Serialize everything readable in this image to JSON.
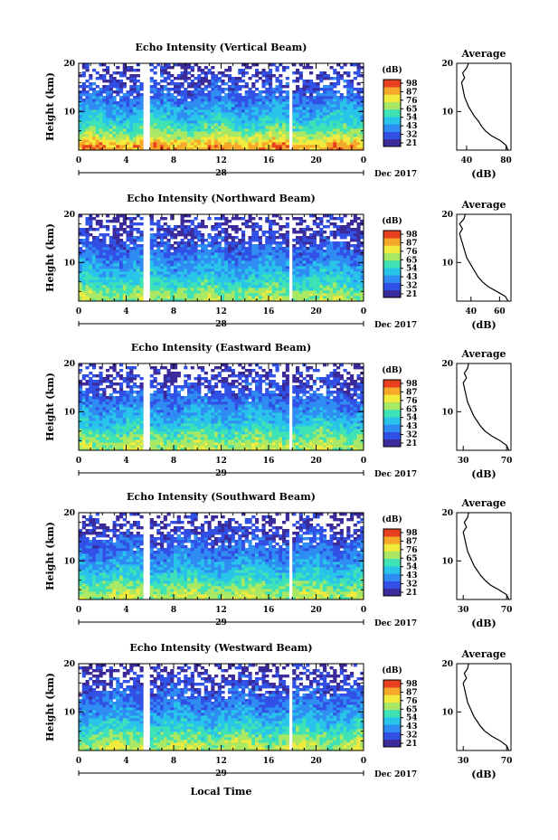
{
  "figure": {
    "xlabel": "Local Time",
    "month_label": "Dec 2017",
    "cbar_unit": "(dB)",
    "cbar_ticks": [
      "98",
      "87",
      "76",
      "65",
      "54",
      "43",
      "32",
      "21"
    ],
    "x_ticks": [
      "0",
      "4",
      "8",
      "12",
      "16",
      "20",
      "0"
    ],
    "y_ticks": [
      "20",
      "10"
    ],
    "avg_title": "Average",
    "avg_xlabel": "(dB)"
  },
  "colors": {
    "colormap": [
      "#3a2a9a",
      "#3050e6",
      "#2f8cf3",
      "#28c4ea",
      "#3ee2b4",
      "#a8e864",
      "#f2ea3c",
      "#f5a82a",
      "#e8401e"
    ]
  },
  "chart_data": [
    {
      "type": "heatmap",
      "title": "Echo Intensity (Vertical Beam)",
      "ylabel": "Height (km)",
      "xlabel": "",
      "date_label": "28",
      "xlim": [
        0,
        24
      ],
      "ylim": [
        2,
        20
      ],
      "zlim": [
        21,
        98
      ],
      "data_gaps_hours": [
        [
          5.5,
          6.0
        ],
        [
          17.6,
          18.1
        ]
      ],
      "heights_km": [
        3,
        5,
        7,
        9,
        11,
        13,
        15,
        17,
        19
      ],
      "mean_intensity_db": [
        85,
        68,
        58,
        50,
        44,
        38,
        33,
        30,
        28
      ],
      "average_profile": {
        "x_ticks": [
          "40",
          "80"
        ],
        "xlim": [
          30,
          85
        ],
        "height_km": [
          2,
          3,
          4,
          5,
          6,
          7,
          8,
          9,
          10,
          11,
          12,
          13,
          14,
          15,
          16,
          17,
          18,
          19,
          20
        ],
        "value_db": [
          82,
          80,
          74,
          65,
          59,
          55,
          52,
          48,
          45,
          42,
          40,
          38,
          37,
          36,
          35,
          38,
          36,
          40,
          42
        ]
      }
    },
    {
      "type": "heatmap",
      "title": "Echo Intensity (Northward Beam)",
      "ylabel": "Height (km)",
      "xlabel": "",
      "date_label": "28",
      "xlim": [
        0,
        24
      ],
      "ylim": [
        2,
        20
      ],
      "zlim": [
        21,
        98
      ],
      "data_gaps_hours": [
        [
          5.5,
          6.0
        ],
        [
          17.6,
          18.1
        ]
      ],
      "heights_km": [
        3,
        5,
        7,
        9,
        11,
        13,
        15,
        17,
        19
      ],
      "mean_intensity_db": [
        68,
        60,
        52,
        46,
        41,
        36,
        32,
        29,
        27
      ],
      "average_profile": {
        "x_ticks": [
          "40",
          "60"
        ],
        "xlim": [
          30,
          68
        ],
        "height_km": [
          2,
          3,
          4,
          5,
          6,
          7,
          8,
          9,
          10,
          11,
          12,
          13,
          14,
          15,
          16,
          17,
          18,
          19,
          20
        ],
        "value_db": [
          66,
          64,
          58,
          52,
          48,
          45,
          43,
          41,
          39,
          37,
          36,
          35,
          34,
          33,
          32,
          34,
          32,
          35,
          36
        ]
      }
    },
    {
      "type": "heatmap",
      "title": "Echo Intensity (Eastward Beam)",
      "ylabel": "Height (km)",
      "xlabel": "",
      "date_label": "29",
      "xlim": [
        0,
        24
      ],
      "ylim": [
        2,
        20
      ],
      "zlim": [
        21,
        98
      ],
      "data_gaps_hours": [
        [
          5.5,
          6.0
        ],
        [
          17.6,
          18.1
        ]
      ],
      "heights_km": [
        3,
        5,
        7,
        9,
        11,
        13,
        15,
        17,
        19
      ],
      "mean_intensity_db": [
        70,
        62,
        54,
        47,
        42,
        37,
        33,
        29,
        27
      ],
      "average_profile": {
        "x_ticks": [
          "30",
          "70"
        ],
        "xlim": [
          24,
          74
        ],
        "height_km": [
          2,
          3,
          4,
          5,
          6,
          7,
          8,
          9,
          10,
          11,
          12,
          13,
          14,
          15,
          16,
          17,
          18,
          19,
          20
        ],
        "value_db": [
          72,
          70,
          64,
          56,
          50,
          46,
          43,
          40,
          38,
          36,
          34,
          33,
          32,
          31,
          30,
          33,
          31,
          34,
          35
        ]
      }
    },
    {
      "type": "heatmap",
      "title": "Echo Intensity (Southward Beam)",
      "ylabel": "Height (km)",
      "xlabel": "",
      "date_label": "29",
      "xlim": [
        0,
        24
      ],
      "ylim": [
        2,
        20
      ],
      "zlim": [
        21,
        98
      ],
      "data_gaps_hours": [
        [
          5.5,
          6.0
        ],
        [
          17.6,
          18.1
        ]
      ],
      "heights_km": [
        3,
        5,
        7,
        9,
        11,
        13,
        15,
        17,
        19
      ],
      "mean_intensity_db": [
        70,
        62,
        54,
        47,
        42,
        37,
        33,
        29,
        27
      ],
      "average_profile": {
        "x_ticks": [
          "30",
          "70"
        ],
        "xlim": [
          24,
          74
        ],
        "height_km": [
          2,
          3,
          4,
          5,
          6,
          7,
          8,
          9,
          10,
          11,
          12,
          13,
          14,
          15,
          16,
          17,
          18,
          19,
          20
        ],
        "value_db": [
          72,
          70,
          63,
          55,
          50,
          46,
          43,
          40,
          38,
          36,
          34,
          33,
          32,
          31,
          30,
          33,
          31,
          34,
          35
        ]
      }
    },
    {
      "type": "heatmap",
      "title": "Echo Intensity (Westward Beam)",
      "ylabel": "Height (km)",
      "xlabel": "Local Time",
      "date_label": "29",
      "xlim": [
        0,
        24
      ],
      "ylim": [
        2,
        20
      ],
      "zlim": [
        21,
        98
      ],
      "data_gaps_hours": [
        [
          5.5,
          6.0
        ],
        [
          17.6,
          18.1
        ]
      ],
      "heights_km": [
        3,
        5,
        7,
        9,
        11,
        13,
        15,
        17,
        19
      ],
      "mean_intensity_db": [
        70,
        62,
        54,
        47,
        42,
        37,
        33,
        29,
        27
      ],
      "average_profile": {
        "x_ticks": [
          "30",
          "70"
        ],
        "xlim": [
          24,
          74
        ],
        "height_km": [
          2,
          3,
          4,
          5,
          6,
          7,
          8,
          9,
          10,
          11,
          12,
          13,
          14,
          15,
          16,
          17,
          18,
          19,
          20
        ],
        "value_db": [
          72,
          70,
          64,
          56,
          50,
          46,
          43,
          40,
          38,
          36,
          34,
          33,
          32,
          31,
          30,
          33,
          31,
          34,
          35
        ]
      }
    }
  ]
}
